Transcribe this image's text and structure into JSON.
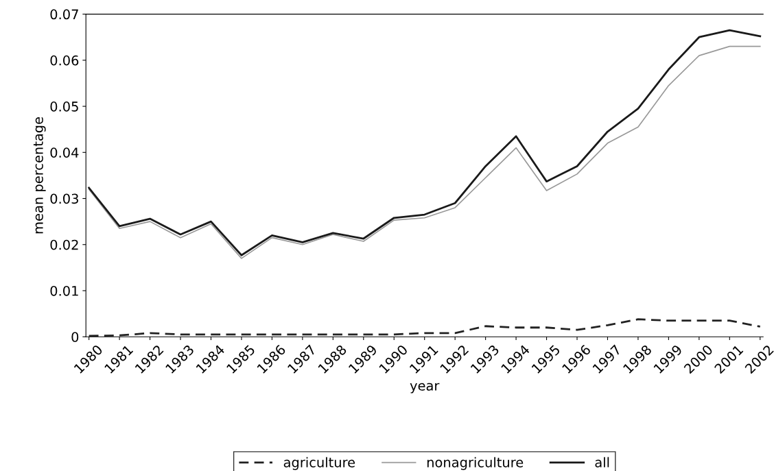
{
  "chart_data": {
    "type": "line",
    "xlabel": "year",
    "ylabel": "mean percentage",
    "categories": [
      "1980",
      "1981",
      "1982",
      "1983",
      "1984",
      "1985",
      "1986",
      "1987",
      "1988",
      "1989",
      "1990",
      "1991",
      "1992",
      "1993",
      "1994",
      "1995",
      "1996",
      "1997",
      "1998",
      "1999",
      "2000",
      "2001",
      "2002"
    ],
    "ylim": [
      0,
      0.07
    ],
    "yticks": [
      {
        "value": 0,
        "label": "0"
      },
      0.01,
      0.02,
      0.03,
      0.04,
      0.05,
      0.06,
      0.07
    ],
    "grid": false,
    "legend": "bottom",
    "marker": "none",
    "series": [
      {
        "name": "agriculture",
        "color": "#222222",
        "line_style": "dashed",
        "values": [
          0.0002,
          0.0003,
          0.0008,
          0.0005,
          0.0005,
          0.0005,
          0.0005,
          0.0005,
          0.0005,
          0.0005,
          0.0005,
          0.0008,
          0.0008,
          0.0023,
          0.002,
          0.002,
          0.0015,
          0.0025,
          0.0038,
          0.0035,
          0.0035,
          0.0035,
          0.0022
        ]
      },
      {
        "name": "nonagriculture",
        "color": "#999999",
        "line_style": "solid",
        "values": [
          0.032,
          0.0235,
          0.025,
          0.0215,
          0.0245,
          0.017,
          0.0215,
          0.02,
          0.0222,
          0.0207,
          0.0253,
          0.0258,
          0.028,
          0.0345,
          0.041,
          0.0317,
          0.0353,
          0.042,
          0.0455,
          0.0545,
          0.061,
          0.063,
          0.063
        ]
      },
      {
        "name": "all",
        "color": "#1a1a1a",
        "line_style": "solid",
        "values": [
          0.0323,
          0.024,
          0.0256,
          0.0222,
          0.025,
          0.0177,
          0.022,
          0.0205,
          0.0225,
          0.0213,
          0.0258,
          0.0265,
          0.029,
          0.037,
          0.0435,
          0.0337,
          0.037,
          0.0445,
          0.0495,
          0.058,
          0.065,
          0.0665,
          0.0652
        ]
      }
    ]
  }
}
